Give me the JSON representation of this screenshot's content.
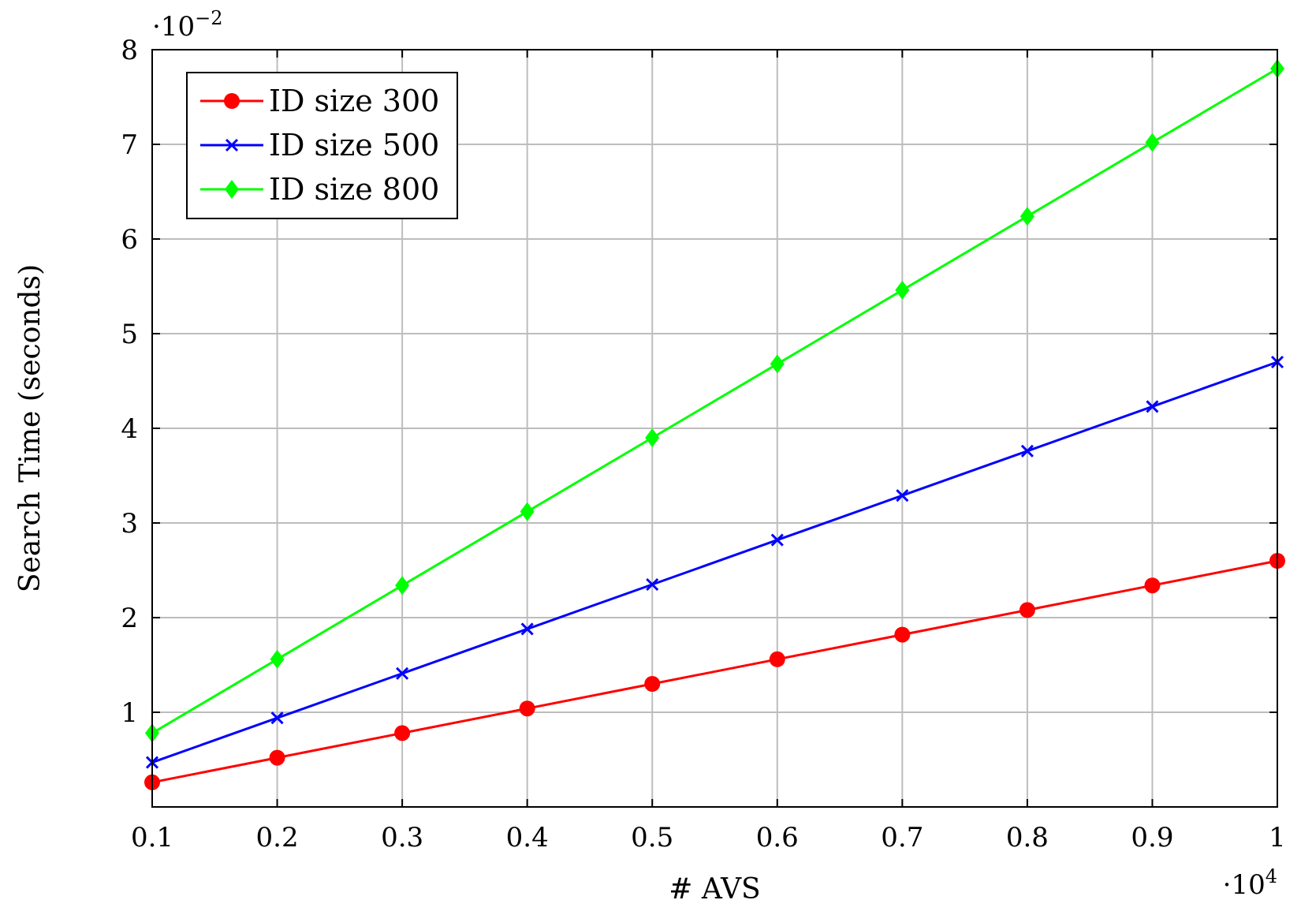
{
  "chart_data": {
    "type": "line",
    "xlabel": "# AVS",
    "ylabel": "Search Time (seconds)",
    "x_multiplier": "·10",
    "x_multiplier_exp": "4",
    "y_multiplier": "·10",
    "y_multiplier_exp": "−2",
    "x": [
      0.1,
      0.2,
      0.3,
      0.4,
      0.5,
      0.6,
      0.7,
      0.8,
      0.9,
      1.0
    ],
    "x_tick_labels": [
      "0.1",
      "0.2",
      "0.3",
      "0.4",
      "0.5",
      "0.6",
      "0.7",
      "0.8",
      "0.9",
      "1"
    ],
    "y_ticks": [
      1,
      2,
      3,
      4,
      5,
      6,
      7,
      8
    ],
    "y_tick_labels": [
      "1",
      "2",
      "3",
      "4",
      "5",
      "6",
      "7",
      "8"
    ],
    "xlim": [
      0.1,
      1.0
    ],
    "ylim": [
      0,
      8
    ],
    "grid": true,
    "legend_position": "top-left",
    "series": [
      {
        "name": "ID size 300",
        "color": "#ff0000",
        "marker": "circle",
        "values": [
          0.26,
          0.52,
          0.78,
          1.04,
          1.3,
          1.56,
          1.82,
          2.08,
          2.34,
          2.6
        ]
      },
      {
        "name": "ID size 500",
        "color": "#0000ff",
        "marker": "x",
        "values": [
          0.47,
          0.94,
          1.41,
          1.88,
          2.35,
          2.82,
          3.29,
          3.76,
          4.23,
          4.7
        ]
      },
      {
        "name": "ID size 800",
        "color": "#00ff00",
        "marker": "diamond",
        "values": [
          0.78,
          1.56,
          2.34,
          3.12,
          3.9,
          4.68,
          5.46,
          6.24,
          7.02,
          7.8
        ]
      }
    ]
  }
}
